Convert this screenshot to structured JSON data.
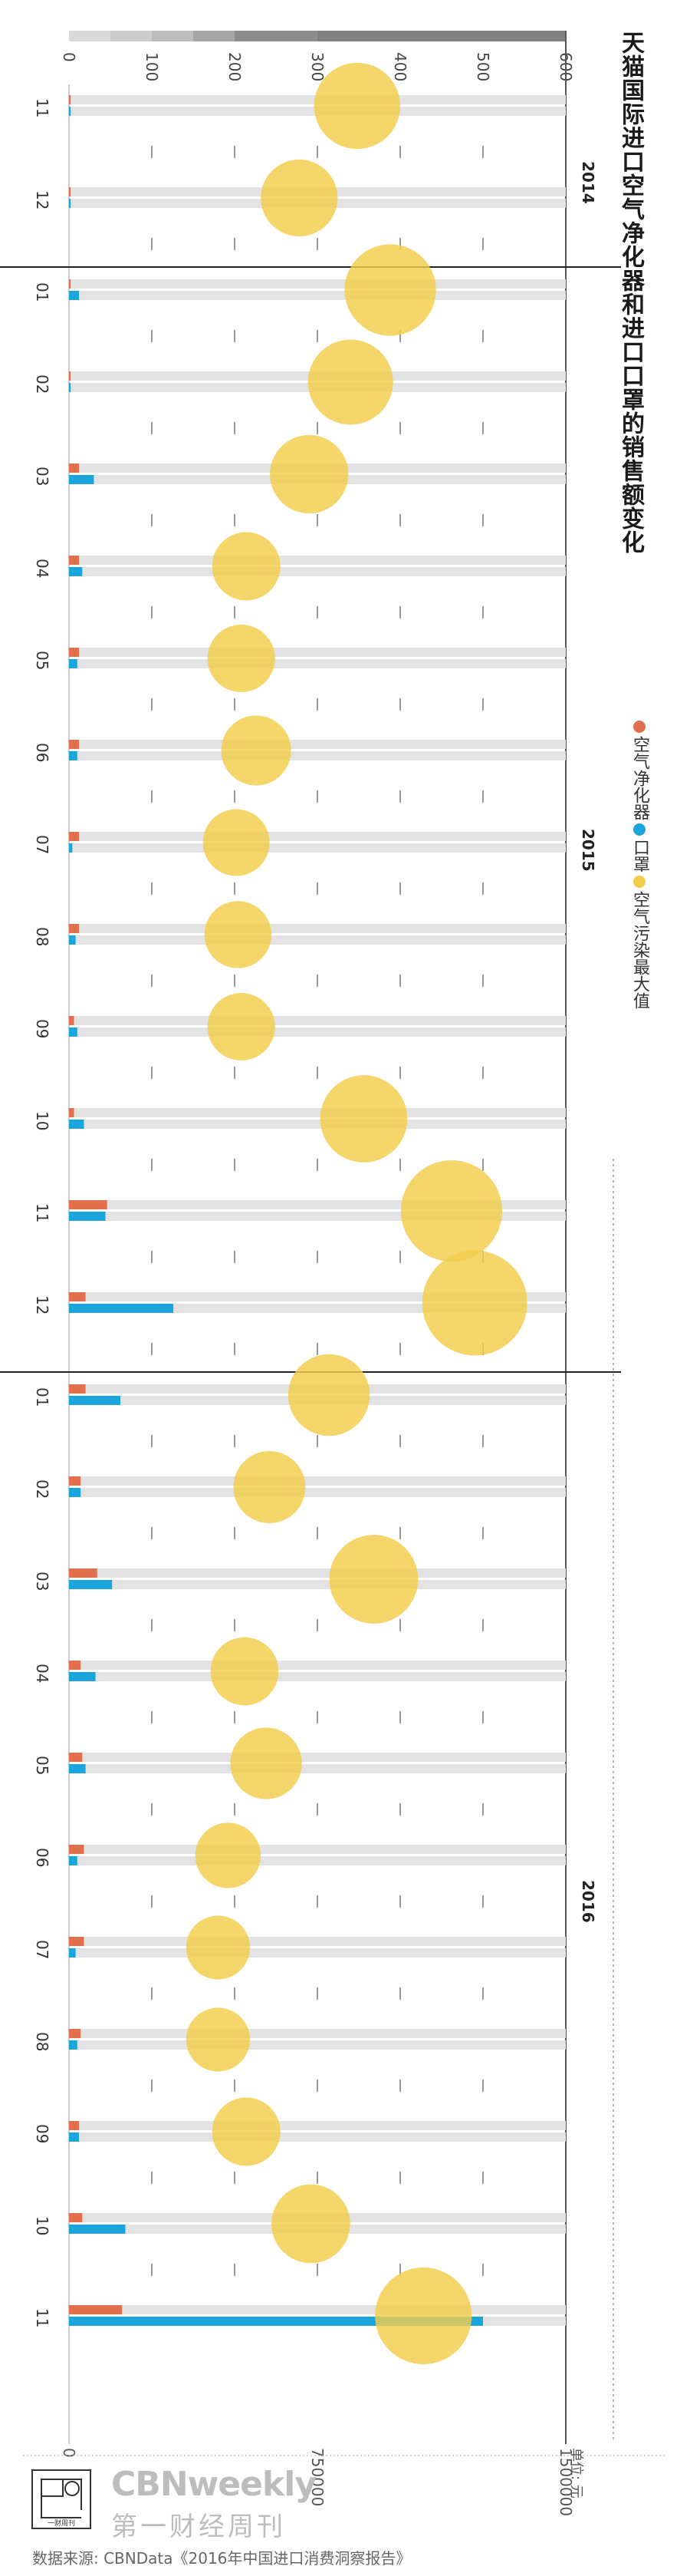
{
  "title": "天猫国际进口空气净化器和进口口罩的销售额变化",
  "legend": [
    {
      "label": "空气净化器",
      "color": "#e2704f"
    },
    {
      "label": "口罩",
      "color": "#1aa6dc"
    },
    {
      "label": "空气污染最大值",
      "color": "#f2cd4a"
    }
  ],
  "unit": "单位: 元",
  "brand": {
    "name": "CBNweekly",
    "cn": "第一财经周刊",
    "logo_text": "一财周刊"
  },
  "source": "数据来源: CBNData《2016年中国进口消费洞察报告》",
  "chart_data": {
    "type": "bar",
    "orientation": "vertical-rotated",
    "pollution_axis": {
      "ticks": [
        0,
        100,
        200,
        300,
        400,
        500,
        600
      ],
      "range": [
        0,
        600
      ]
    },
    "sales_axis": {
      "ticks": [
        0,
        750000,
        1500000
      ],
      "range": [
        0,
        1500000
      ],
      "tick_labels": [
        "0",
        "750000",
        "1500000"
      ]
    },
    "years": [
      {
        "label": "2014",
        "start": 0,
        "end": 1
      },
      {
        "label": "2015",
        "start": 2,
        "end": 13
      },
      {
        "label": "2016",
        "start": 14,
        "end": 24
      }
    ],
    "categories": [
      "11",
      "12",
      "01",
      "02",
      "03",
      "04",
      "05",
      "06",
      "07",
      "08",
      "09",
      "10",
      "11",
      "12",
      "01",
      "02",
      "03",
      "04",
      "05",
      "06",
      "07",
      "08",
      "09",
      "10",
      "11"
    ],
    "series": [
      {
        "name": "空气净化器",
        "values": [
          5000,
          5000,
          5000,
          5000,
          30000,
          30000,
          30000,
          30000,
          30000,
          30000,
          15000,
          15000,
          115000,
          50000,
          50000,
          35000,
          85000,
          35000,
          40000,
          45000,
          45000,
          35000,
          30000,
          40000,
          160000
        ]
      },
      {
        "name": "口罩",
        "values": [
          5000,
          5000,
          30000,
          5000,
          75000,
          40000,
          25000,
          25000,
          10000,
          20000,
          25000,
          45000,
          110000,
          315000,
          155000,
          35000,
          130000,
          80000,
          50000,
          25000,
          20000,
          25000,
          30000,
          170000,
          1250000
        ]
      },
      {
        "name": "空气污染最大值",
        "values": [
          348,
          278,
          388,
          340,
          290,
          214,
          208,
          226,
          202,
          204,
          208,
          356,
          462,
          490,
          314,
          242,
          368,
          212,
          238,
          192,
          180,
          180,
          214,
          292,
          428
        ]
      }
    ]
  }
}
